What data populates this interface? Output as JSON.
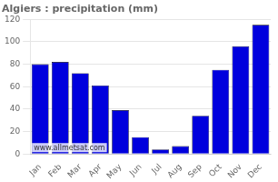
{
  "chart_data": {
    "type": "bar",
    "title": "Algiers : precipitation (mm)",
    "categories": [
      "Jan",
      "Feb",
      "Mar",
      "Apr",
      "May",
      "Jun",
      "Jul",
      "Aug",
      "Sep",
      "Oct",
      "Nov",
      "Dec"
    ],
    "values": [
      80,
      82,
      72,
      61,
      39,
      15,
      4,
      7,
      34,
      75,
      96,
      115
    ],
    "color": "#0000dd",
    "ylim": [
      0,
      120
    ],
    "yticks": [
      0,
      20,
      40,
      60,
      80,
      100,
      120
    ],
    "grid": true,
    "annotations": [
      "www.allmetsat.com"
    ]
  }
}
